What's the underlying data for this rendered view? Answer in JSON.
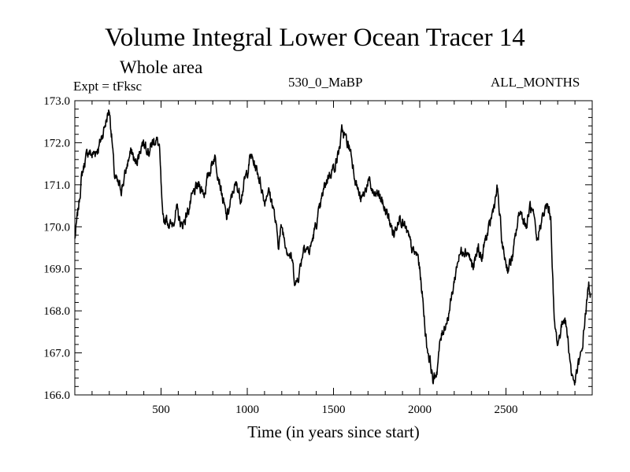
{
  "chart_data": {
    "type": "line",
    "title": "Volume Integral Lower Ocean Tracer 14",
    "subtitle": "Whole area",
    "annotations": {
      "experiment": "Expt = tFksc",
      "run": "530_0_MaBP",
      "months": "ALL_MONTHS"
    },
    "xlabel": "Time (in years since start)",
    "ylabel": "",
    "xlim": [
      0,
      3000
    ],
    "ylim": [
      166.0,
      173.0
    ],
    "x_ticks": [
      500,
      1000,
      1500,
      2000,
      2500
    ],
    "x_tick_labels": [
      "500",
      "1000",
      "1500",
      "2000",
      "2500"
    ],
    "y_ticks": [
      166,
      167,
      168,
      169,
      170,
      171,
      172,
      173
    ],
    "y_tick_labels": [
      "166.0",
      "167.0",
      "168.0",
      "169.0",
      "170.0",
      "171.0",
      "172.0",
      "173.0"
    ],
    "grid": false,
    "series": [
      {
        "name": "Tracer 14",
        "x": [
          0,
          20,
          40,
          60,
          80,
          100,
          120,
          140,
          160,
          180,
          200,
          215,
          230,
          250,
          270,
          290,
          310,
          330,
          350,
          370,
          390,
          410,
          430,
          450,
          470,
          490,
          500,
          510,
          530,
          560,
          590,
          620,
          650,
          690,
          720,
          750,
          780,
          810,
          840,
          860,
          880,
          900,
          920,
          940,
          960,
          980,
          1000,
          1020,
          1040,
          1060,
          1080,
          1100,
          1120,
          1150,
          1180,
          1200,
          1230,
          1260,
          1280,
          1300,
          1330,
          1360,
          1390,
          1420,
          1450,
          1480,
          1500,
          1520,
          1540,
          1550,
          1560,
          1580,
          1600,
          1620,
          1640,
          1660,
          1680,
          1700,
          1720,
          1740,
          1760,
          1780,
          1800,
          1820,
          1850,
          1880,
          1900,
          1930,
          1960,
          1990,
          2010,
          2040,
          2060,
          2080,
          2100,
          2120,
          2140,
          2160,
          2180,
          2200,
          2220,
          2250,
          2280,
          2310,
          2340,
          2360,
          2380,
          2400,
          2420,
          2450,
          2480,
          2510,
          2540,
          2560,
          2580,
          2600,
          2620,
          2640,
          2660,
          2680,
          2700,
          2720,
          2740,
          2760,
          2780,
          2800,
          2820,
          2840,
          2860,
          2880,
          2900,
          2920,
          2940,
          2960,
          2980,
          2990
        ],
        "values": [
          169.7,
          170.4,
          171.2,
          171.6,
          171.8,
          171.7,
          171.8,
          171.9,
          172.2,
          172.5,
          172.8,
          172.1,
          171.2,
          171.0,
          170.9,
          171.2,
          171.6,
          171.8,
          171.5,
          171.7,
          172.0,
          172.0,
          171.8,
          172.0,
          172.1,
          171.9,
          171.0,
          170.1,
          170.2,
          170.0,
          170.4,
          170.0,
          170.3,
          170.8,
          171.0,
          170.8,
          171.3,
          171.7,
          171.1,
          170.6,
          170.2,
          170.5,
          170.9,
          171.0,
          170.7,
          171.0,
          171.3,
          171.7,
          171.5,
          171.3,
          171.0,
          170.6,
          170.9,
          170.5,
          169.6,
          170.0,
          169.5,
          169.2,
          168.6,
          168.9,
          169.6,
          169.4,
          169.9,
          170.4,
          171.0,
          171.3,
          171.4,
          171.6,
          172.0,
          172.3,
          172.2,
          172.0,
          171.8,
          171.3,
          170.9,
          170.6,
          170.8,
          171.1,
          170.9,
          170.7,
          170.8,
          170.6,
          170.4,
          170.2,
          169.8,
          170.3,
          170.1,
          169.8,
          169.4,
          169.3,
          168.6,
          167.2,
          166.8,
          166.3,
          166.6,
          167.3,
          167.6,
          167.8,
          168.2,
          168.7,
          169.2,
          169.5,
          169.4,
          169.0,
          169.5,
          169.2,
          169.7,
          169.9,
          170.3,
          170.9,
          169.5,
          169.0,
          169.3,
          169.9,
          170.4,
          170.2,
          170.0,
          170.5,
          170.2,
          169.6,
          170.1,
          170.3,
          170.5,
          170.2,
          167.7,
          167.2,
          167.6,
          167.9,
          167.3,
          166.5,
          166.3,
          166.7,
          167.0,
          167.9,
          168.6,
          168.4
        ]
      }
    ]
  }
}
